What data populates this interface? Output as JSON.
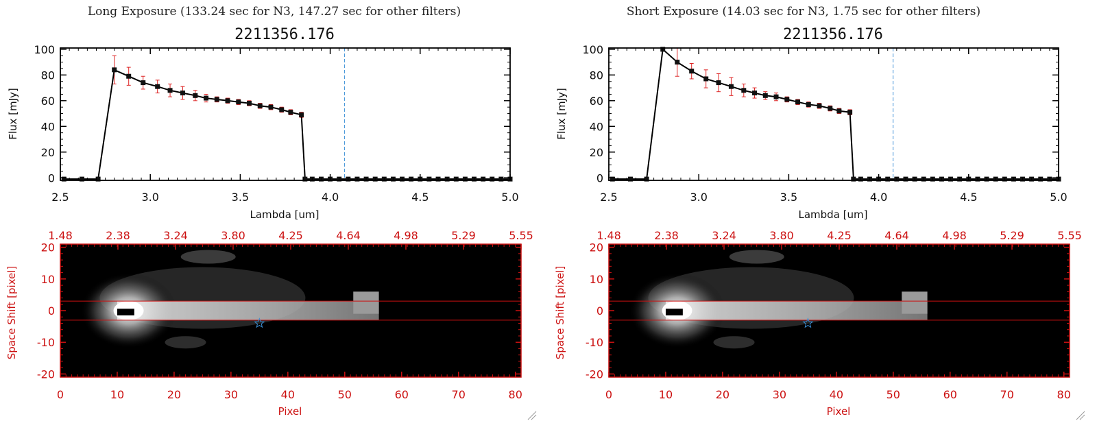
{
  "chart_data": [
    {
      "type": "line",
      "panel": "left",
      "header": "Long Exposure (133.24 sec for N3, 147.27 sec for other filters)",
      "title": "2211356.176",
      "xlabel": "Lambda [um]",
      "ylabel": "Flux [mJy]",
      "xlim": [
        2.5,
        5.0
      ],
      "ylim": [
        -2,
        101
      ],
      "xticks": [
        "2.5",
        "3.0",
        "3.5",
        "4.0",
        "4.5",
        "5.0"
      ],
      "yticks": [
        "0",
        "20",
        "40",
        "60",
        "80",
        "100"
      ],
      "vline_x": 4.08,
      "series": [
        {
          "x": [
            2.52,
            2.62,
            2.71,
            2.8,
            2.88,
            2.96,
            3.04,
            3.11,
            3.18,
            3.25,
            3.31,
            3.37,
            3.43,
            3.49,
            3.55,
            3.61,
            3.67,
            3.73,
            3.78,
            3.84,
            3.86,
            3.9,
            3.95,
            4.0,
            4.05,
            4.1,
            4.15,
            4.2,
            4.25,
            4.3,
            4.35,
            4.4,
            4.45,
            4.5,
            4.55,
            4.6,
            4.65,
            4.7,
            4.75,
            4.8,
            4.85,
            4.9,
            4.95,
            5.0
          ],
          "y": [
            -1,
            -1,
            -1,
            84,
            79,
            74,
            71,
            68,
            66,
            64,
            62,
            61,
            60,
            59,
            58,
            56,
            55,
            53,
            51,
            49,
            -1,
            -1,
            -1,
            -1,
            -1,
            -1,
            -1,
            -1,
            -1,
            -1,
            -1,
            -1,
            -1,
            -1,
            -1,
            -1,
            -1,
            -1,
            -1,
            -1,
            -1,
            -1,
            -1,
            -1
          ],
          "yerr": [
            0,
            0,
            0,
            11,
            7,
            5,
            5,
            5,
            5,
            4,
            3,
            2,
            2,
            2,
            2,
            2,
            2,
            2,
            2,
            2,
            0,
            0,
            0,
            0,
            0,
            0,
            0,
            0,
            0,
            0,
            0,
            0,
            0,
            0,
            0,
            0,
            0,
            0,
            0,
            0,
            0,
            0,
            0,
            0
          ]
        }
      ],
      "image": {
        "xlabel": "Pixel",
        "ylabel": "Space Shift [pixel]",
        "xlim": [
          0,
          81
        ],
        "ylim": [
          -21,
          21
        ],
        "xticks": [
          "0",
          "10",
          "20",
          "30",
          "40",
          "50",
          "60",
          "70",
          "80"
        ],
        "yticks": [
          "-20",
          "-10",
          "0",
          "10",
          "20"
        ],
        "top_ticks": [
          "1.48",
          "2.38",
          "3.24",
          "3.80",
          "4.25",
          "4.64",
          "4.98",
          "5.29",
          "5.55"
        ],
        "hlines": [
          3,
          -3
        ],
        "star": [
          35,
          -4
        ]
      }
    },
    {
      "type": "line",
      "panel": "right",
      "header": "Short Exposure (14.03 sec for N3, 1.75 sec for other filters)",
      "title": "2211356.176",
      "xlabel": "Lambda [um]",
      "ylabel": "Flux [mJy]",
      "xlim": [
        2.5,
        5.0
      ],
      "ylim": [
        -2,
        101
      ],
      "xticks": [
        "2.5",
        "3.0",
        "3.5",
        "4.0",
        "4.5",
        "5.0"
      ],
      "yticks": [
        "0",
        "20",
        "40",
        "60",
        "80",
        "100"
      ],
      "vline_x": 4.08,
      "series": [
        {
          "x": [
            2.52,
            2.62,
            2.71,
            2.8,
            2.88,
            2.96,
            3.04,
            3.11,
            3.18,
            3.25,
            3.31,
            3.37,
            3.43,
            3.49,
            3.55,
            3.61,
            3.67,
            3.73,
            3.78,
            3.84,
            3.86,
            3.9,
            3.95,
            4.0,
            4.05,
            4.1,
            4.15,
            4.2,
            4.25,
            4.3,
            4.35,
            4.4,
            4.45,
            4.5,
            4.55,
            4.6,
            4.65,
            4.7,
            4.75,
            4.8,
            4.85,
            4.9,
            4.95,
            5.0
          ],
          "y": [
            -1,
            -1,
            -1,
            100,
            90,
            83,
            77,
            74,
            71,
            68,
            66,
            64,
            63,
            61,
            59,
            57,
            56,
            54,
            52,
            51,
            -1,
            -1,
            -1,
            -1,
            -1,
            -1,
            -1,
            -1,
            -1,
            -1,
            -1,
            -1,
            -1,
            -1,
            -1,
            -1,
            -1,
            -1,
            -1,
            -1,
            -1,
            -1,
            -1,
            -1
          ],
          "yerr": [
            0,
            0,
            0,
            0,
            11,
            6,
            7,
            7,
            7,
            5,
            4,
            3,
            3,
            2,
            2,
            2,
            2,
            2,
            2,
            2,
            0,
            0,
            0,
            0,
            0,
            0,
            0,
            0,
            0,
            0,
            0,
            0,
            0,
            0,
            0,
            0,
            0,
            0,
            0,
            0,
            0,
            0,
            0,
            0
          ]
        }
      ],
      "image": {
        "xlabel": "Pixel",
        "ylabel": "Space Shift [pixel]",
        "xlim": [
          0,
          81
        ],
        "ylim": [
          -21,
          21
        ],
        "xticks": [
          "0",
          "10",
          "20",
          "30",
          "40",
          "50",
          "60",
          "70",
          "80"
        ],
        "yticks": [
          "-20",
          "-10",
          "0",
          "10",
          "20"
        ],
        "top_ticks": [
          "1.48",
          "2.38",
          "3.24",
          "3.80",
          "4.25",
          "4.64",
          "4.98",
          "5.29",
          "5.55"
        ],
        "hlines": [
          3,
          -3
        ],
        "star": [
          35,
          -4
        ]
      }
    }
  ],
  "colors": {
    "line": "#000000",
    "marker": "#111111",
    "errorbar": "#dd2222",
    "vline": "#3a8fd6",
    "image_axes": "#cc1111",
    "star": "#3a8fd6"
  }
}
